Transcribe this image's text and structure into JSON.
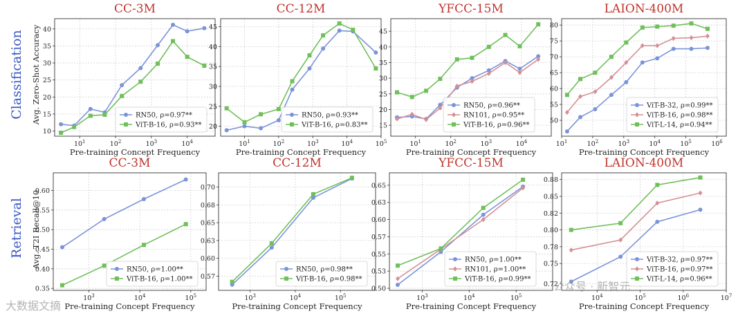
{
  "row_labels": {
    "top": "Classification",
    "bottom": "Retrieval"
  },
  "y_labels": {
    "top": "Avg. Zero-Shot Accuracy",
    "bottom": "Avg. T2I Recall@10"
  },
  "x_label": "Pre-training Concept Frequency",
  "colors": {
    "blue": "#7b93d8",
    "green": "#6fbf5a",
    "pink": "#d58f94",
    "title": "#c0332b",
    "row": "#3a57c4"
  },
  "watermark": {
    "left": "大数据文摘",
    "right": "公众号 · 新智元"
  },
  "chart_data": [
    {
      "type": "line",
      "row": "top",
      "title": "CC-3M",
      "xscale": "log",
      "xlim": [
        2,
        60000
      ],
      "ylim": [
        8.5,
        43
      ],
      "xticks": [
        {
          "v": 10,
          "label": "10^1"
        },
        {
          "v": 100,
          "label": "10^2"
        },
        {
          "v": 1000,
          "label": "10^3"
        },
        {
          "v": 10000,
          "label": "10^4"
        }
      ],
      "yticks": [
        10,
        15,
        20,
        25,
        30,
        35,
        40
      ],
      "ydecimals": 0,
      "series": [
        {
          "name": "RN50",
          "label": "RN50, ρ=0.97**",
          "color": "#7b93d8",
          "marker": "circle",
          "x": [
            3,
            7,
            20,
            50,
            150,
            500,
            1500,
            4000,
            10000,
            30000
          ],
          "y": [
            12,
            11.6,
            16.5,
            15.5,
            23.5,
            28.5,
            35.2,
            41.2,
            39.3,
            40.2
          ]
        },
        {
          "name": "ViT-B-16",
          "label": "ViT-B-16, ρ=0.93**",
          "color": "#6fbf5a",
          "marker": "square",
          "x": [
            3,
            7,
            20,
            50,
            150,
            500,
            1500,
            4000,
            10000,
            30000
          ],
          "y": [
            9.5,
            11.2,
            14.5,
            14.8,
            20.3,
            24.5,
            29.8,
            36.4,
            31.8,
            29.2
          ]
        }
      ]
    },
    {
      "type": "line",
      "row": "top",
      "title": "CC-12M",
      "xscale": "log",
      "xlim": [
        2,
        100000
      ],
      "ylim": [
        17.5,
        47
      ],
      "xticks": [
        {
          "v": 10,
          "label": "10^1"
        },
        {
          "v": 100,
          "label": "10^2"
        },
        {
          "v": 1000,
          "label": "10^3"
        },
        {
          "v": 10000,
          "label": "10^4"
        },
        {
          "v": 100000,
          "label": "10^5"
        }
      ],
      "yticks": [
        20,
        25,
        30,
        35,
        40,
        45
      ],
      "ydecimals": 0,
      "series": [
        {
          "name": "RN50",
          "label": "RN50, ρ=0.93**",
          "color": "#7b93d8",
          "marker": "circle",
          "x": [
            3,
            10,
            30,
            100,
            250,
            800,
            2000,
            6000,
            15000,
            70000
          ],
          "y": [
            19,
            20,
            19.5,
            21.5,
            29.2,
            34.5,
            39.5,
            44,
            43.8,
            38.5
          ]
        },
        {
          "name": "ViT-B-16",
          "label": "ViT-B-16, ρ=0.83**",
          "color": "#6fbf5a",
          "marker": "square",
          "x": [
            3,
            10,
            30,
            100,
            250,
            800,
            2000,
            6000,
            15000,
            70000
          ],
          "y": [
            24.5,
            21,
            23,
            24.3,
            31.3,
            37.8,
            42.8,
            45.8,
            44.2,
            34.5
          ]
        }
      ]
    },
    {
      "type": "line",
      "row": "top",
      "title": "YFCC-15M",
      "xscale": "log",
      "xlim": [
        2,
        70000
      ],
      "ylim": [
        11.5,
        49
      ],
      "xticks": [
        {
          "v": 10,
          "label": "10^1"
        },
        {
          "v": 100,
          "label": "10^2"
        },
        {
          "v": 1000,
          "label": "10^3"
        },
        {
          "v": 10000,
          "label": "10^4"
        }
      ],
      "yticks": [
        15,
        20,
        25,
        30,
        35,
        40,
        45
      ],
      "ydecimals": 0,
      "series": [
        {
          "name": "RN50",
          "label": "RN50, ρ=0.96**",
          "color": "#7b93d8",
          "marker": "circle",
          "x": [
            3,
            8,
            20,
            50,
            150,
            400,
            1200,
            3500,
            9000,
            30000
          ],
          "y": [
            17.5,
            17.8,
            17,
            21.5,
            27,
            30,
            32.5,
            35.5,
            33,
            37
          ]
        },
        {
          "name": "RN101",
          "label": "RN101, ρ=0.95**",
          "color": "#d58f94",
          "marker": "diamond",
          "x": [
            3,
            8,
            20,
            50,
            150,
            400,
            1200,
            3500,
            9000,
            30000
          ],
          "y": [
            17,
            18.5,
            16.8,
            20.5,
            27.5,
            29,
            31.5,
            35,
            31.8,
            36
          ]
        },
        {
          "name": "ViT-B-16",
          "label": "ViT-B-16, ρ=0.96**",
          "color": "#6fbf5a",
          "marker": "square",
          "x": [
            3,
            8,
            20,
            50,
            150,
            400,
            1200,
            3500,
            9000,
            30000
          ],
          "y": [
            25.5,
            24,
            26,
            29.8,
            36,
            36.5,
            40,
            43.8,
            40.2,
            47.2
          ]
        }
      ]
    },
    {
      "type": "line",
      "row": "top",
      "title": "LAION-400M",
      "xscale": "log",
      "xlim": [
        10,
        2000000
      ],
      "ylim": [
        45,
        82
      ],
      "xticks": [
        {
          "v": 10,
          "label": "10^1"
        },
        {
          "v": 100,
          "label": "10^2"
        },
        {
          "v": 1000,
          "label": "10^3"
        },
        {
          "v": 10000,
          "label": "10^4"
        },
        {
          "v": 100000,
          "label": "10^5"
        },
        {
          "v": 1000000,
          "label": "10^6"
        }
      ],
      "yticks": [
        50,
        55,
        60,
        65,
        70,
        75,
        80
      ],
      "ydecimals": 0,
      "series": [
        {
          "name": "ViT-B-32",
          "label": "ViT-B-32, ρ=0.99**",
          "color": "#7b93d8",
          "marker": "circle",
          "x": [
            15,
            40,
            120,
            400,
            1200,
            4000,
            12000,
            40000,
            150000,
            500000
          ],
          "y": [
            46.5,
            51,
            53.5,
            58,
            62,
            68.2,
            69.5,
            72.5,
            72.5,
            72.8
          ]
        },
        {
          "name": "ViT-B-16",
          "label": "ViT-B-16, ρ=0.98**",
          "color": "#d58f94",
          "marker": "diamond",
          "x": [
            15,
            40,
            120,
            400,
            1200,
            4000,
            12000,
            40000,
            150000,
            500000
          ],
          "y": [
            52.5,
            57.5,
            59,
            63.5,
            68.2,
            73.5,
            73.5,
            75.8,
            76,
            76.5
          ]
        },
        {
          "name": "ViT-L-14",
          "label": "ViT-L-14, ρ=0.94**",
          "color": "#6fbf5a",
          "marker": "square",
          "x": [
            15,
            40,
            120,
            400,
            1200,
            4000,
            12000,
            40000,
            150000,
            500000
          ],
          "y": [
            58,
            63,
            65,
            70,
            74.5,
            79.2,
            79.5,
            79.8,
            80.5,
            78.8
          ]
        }
      ]
    },
    {
      "type": "line",
      "row": "bottom",
      "title": "CC-3M",
      "xscale": "log",
      "xlim": [
        200,
        200000
      ],
      "ylim": [
        0.345,
        0.645
      ],
      "xticks": [
        {
          "v": 1000,
          "label": "10^3"
        },
        {
          "v": 10000,
          "label": "10^4"
        },
        {
          "v": 100000,
          "label": "10^5"
        }
      ],
      "yticks": [
        0.35,
        0.4,
        0.45,
        0.5,
        0.55,
        0.6
      ],
      "ydecimals": 2,
      "series": [
        {
          "name": "RN50",
          "label": "RN50, ρ=1.00**",
          "color": "#7b93d8",
          "marker": "circle",
          "x": [
            300,
            2000,
            12000,
            80000
          ],
          "y": [
            0.455,
            0.527,
            0.578,
            0.628
          ]
        },
        {
          "name": "ViT-B-16",
          "label": "ViT-B-16, ρ=1.00**",
          "color": "#6fbf5a",
          "marker": "square",
          "x": [
            300,
            2000,
            12000,
            80000
          ],
          "y": [
            0.358,
            0.408,
            0.461,
            0.514
          ]
        }
      ]
    },
    {
      "type": "line",
      "row": "bottom",
      "title": "CC-12M",
      "xscale": "log",
      "xlim": [
        200,
        600000
      ],
      "ylim": [
        0.555,
        0.72
      ],
      "xticks": [
        {
          "v": 1000,
          "label": "10^3"
        },
        {
          "v": 10000,
          "label": "10^4"
        },
        {
          "v": 100000,
          "label": "10^5"
        }
      ],
      "yticks": [
        0.575,
        0.6,
        0.625,
        0.65,
        0.675,
        0.7
      ],
      "ydecimals": 2,
      "series": [
        {
          "name": "RN50",
          "label": "RN50, ρ=0.98**",
          "color": "#7b93d8",
          "marker": "circle",
          "x": [
            400,
            3000,
            25000,
            180000
          ],
          "y": [
            0.563,
            0.615,
            0.685,
            0.712
          ]
        },
        {
          "name": "ViT-B-16",
          "label": "ViT-B-16, ρ=0.98**",
          "color": "#6fbf5a",
          "marker": "square",
          "x": [
            400,
            3000,
            25000,
            180000
          ],
          "y": [
            0.567,
            0.621,
            0.69,
            0.713
          ]
        }
      ]
    },
    {
      "type": "line",
      "row": "bottom",
      "title": "YFCC-15M",
      "xscale": "log",
      "xlim": [
        200,
        600000
      ],
      "ylim": [
        0.497,
        0.668
      ],
      "xticks": [
        {
          "v": 1000,
          "label": "10^3"
        },
        {
          "v": 10000,
          "label": "10^4"
        },
        {
          "v": 100000,
          "label": "10^5"
        }
      ],
      "yticks": [
        0.5,
        0.525,
        0.55,
        0.575,
        0.6,
        0.625,
        0.65
      ],
      "ydecimals": 2,
      "series": [
        {
          "name": "RN50",
          "label": "RN50, ρ=1.00**",
          "color": "#7b93d8",
          "marker": "circle",
          "x": [
            300,
            2500,
            20000,
            140000
          ],
          "y": [
            0.505,
            0.553,
            0.607,
            0.648
          ]
        },
        {
          "name": "RN101",
          "label": "RN101, ρ=1.00**",
          "color": "#d58f94",
          "marker": "diamond",
          "x": [
            300,
            2500,
            20000,
            140000
          ],
          "y": [
            0.514,
            0.557,
            0.6,
            0.646
          ]
        },
        {
          "name": "ViT-B-16",
          "label": "ViT-B-16, ρ=0.99**",
          "color": "#6fbf5a",
          "marker": "square",
          "x": [
            300,
            2500,
            20000,
            140000
          ],
          "y": [
            0.533,
            0.558,
            0.617,
            0.658
          ]
        }
      ]
    },
    {
      "type": "line",
      "row": "bottom",
      "title": "LAION-400M",
      "xscale": "log",
      "xlim": [
        1500,
        10000000
      ],
      "ylim": [
        0.71,
        0.885
      ],
      "xticks": [
        {
          "v": 10000,
          "label": "10^4"
        },
        {
          "v": 100000,
          "label": "10^5"
        },
        {
          "v": 1000000,
          "label": "10^6"
        },
        {
          "v": 10000000,
          "label": "10^7"
        }
      ],
      "yticks": [
        0.72,
        0.75,
        0.775,
        0.8,
        0.825,
        0.85,
        0.875
      ],
      "ydecimals": 2,
      "series": [
        {
          "name": "ViT-B-32",
          "label": "ViT-B-32, ρ=0.97**",
          "color": "#7b93d8",
          "marker": "circle",
          "x": [
            2500,
            35000,
            250000,
            2500000
          ],
          "y": [
            0.723,
            0.76,
            0.812,
            0.83
          ]
        },
        {
          "name": "ViT-B-16",
          "label": "ViT-B-16, ρ=0.97**",
          "color": "#d58f94",
          "marker": "diamond",
          "x": [
            2500,
            35000,
            250000,
            2500000
          ],
          "y": [
            0.77,
            0.785,
            0.84,
            0.855
          ]
        },
        {
          "name": "ViT-L-14",
          "label": "ViT-L-14, ρ=0.96**",
          "color": "#6fbf5a",
          "marker": "square",
          "x": [
            2500,
            35000,
            250000,
            2500000
          ],
          "y": [
            0.8,
            0.81,
            0.867,
            0.878
          ]
        }
      ]
    }
  ]
}
